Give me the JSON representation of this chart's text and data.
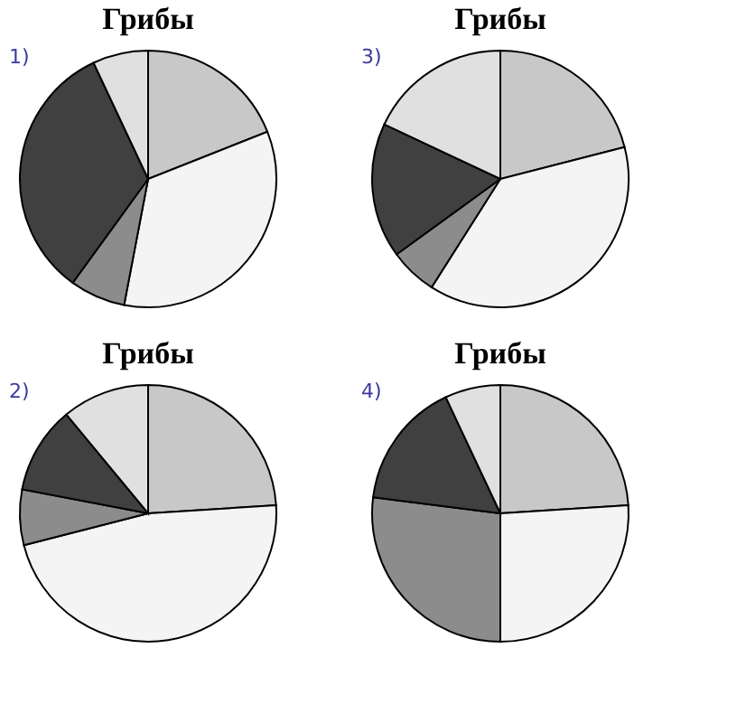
{
  "chart_data": [
    {
      "type": "pie",
      "title": "Грибы",
      "annotations": [
        "1)"
      ],
      "categories": [
        null,
        null,
        null,
        null,
        null
      ],
      "values": [
        19,
        34,
        7,
        33,
        7
      ],
      "colors": [
        "#c8c8c8",
        "#f4f4f4",
        "#8c8c8c",
        "#404040",
        "#e0e0e0"
      ],
      "legend": false
    },
    {
      "type": "pie",
      "title": "Грибы",
      "annotations": [
        "3)"
      ],
      "categories": [
        null,
        null,
        null,
        null,
        null
      ],
      "values": [
        21,
        38,
        6,
        17,
        18
      ],
      "colors": [
        "#c8c8c8",
        "#f4f4f4",
        "#8c8c8c",
        "#404040",
        "#e0e0e0"
      ],
      "legend": false
    },
    {
      "type": "pie",
      "title": "Грибы",
      "annotations": [
        "2)"
      ],
      "categories": [
        null,
        null,
        null,
        null,
        null
      ],
      "values": [
        24,
        47,
        7,
        11,
        11
      ],
      "colors": [
        "#c8c8c8",
        "#f4f4f4",
        "#8c8c8c",
        "#404040",
        "#e0e0e0"
      ],
      "legend": false
    },
    {
      "type": "pie",
      "title": "Грибы",
      "annotations": [
        "4)"
      ],
      "categories": [
        null,
        null,
        null,
        null,
        null
      ],
      "values": [
        24,
        26,
        27,
        16,
        7
      ],
      "colors": [
        "#c8c8c8",
        "#f4f4f4",
        "#8c8c8c",
        "#404040",
        "#e0e0e0"
      ],
      "legend": false
    }
  ]
}
